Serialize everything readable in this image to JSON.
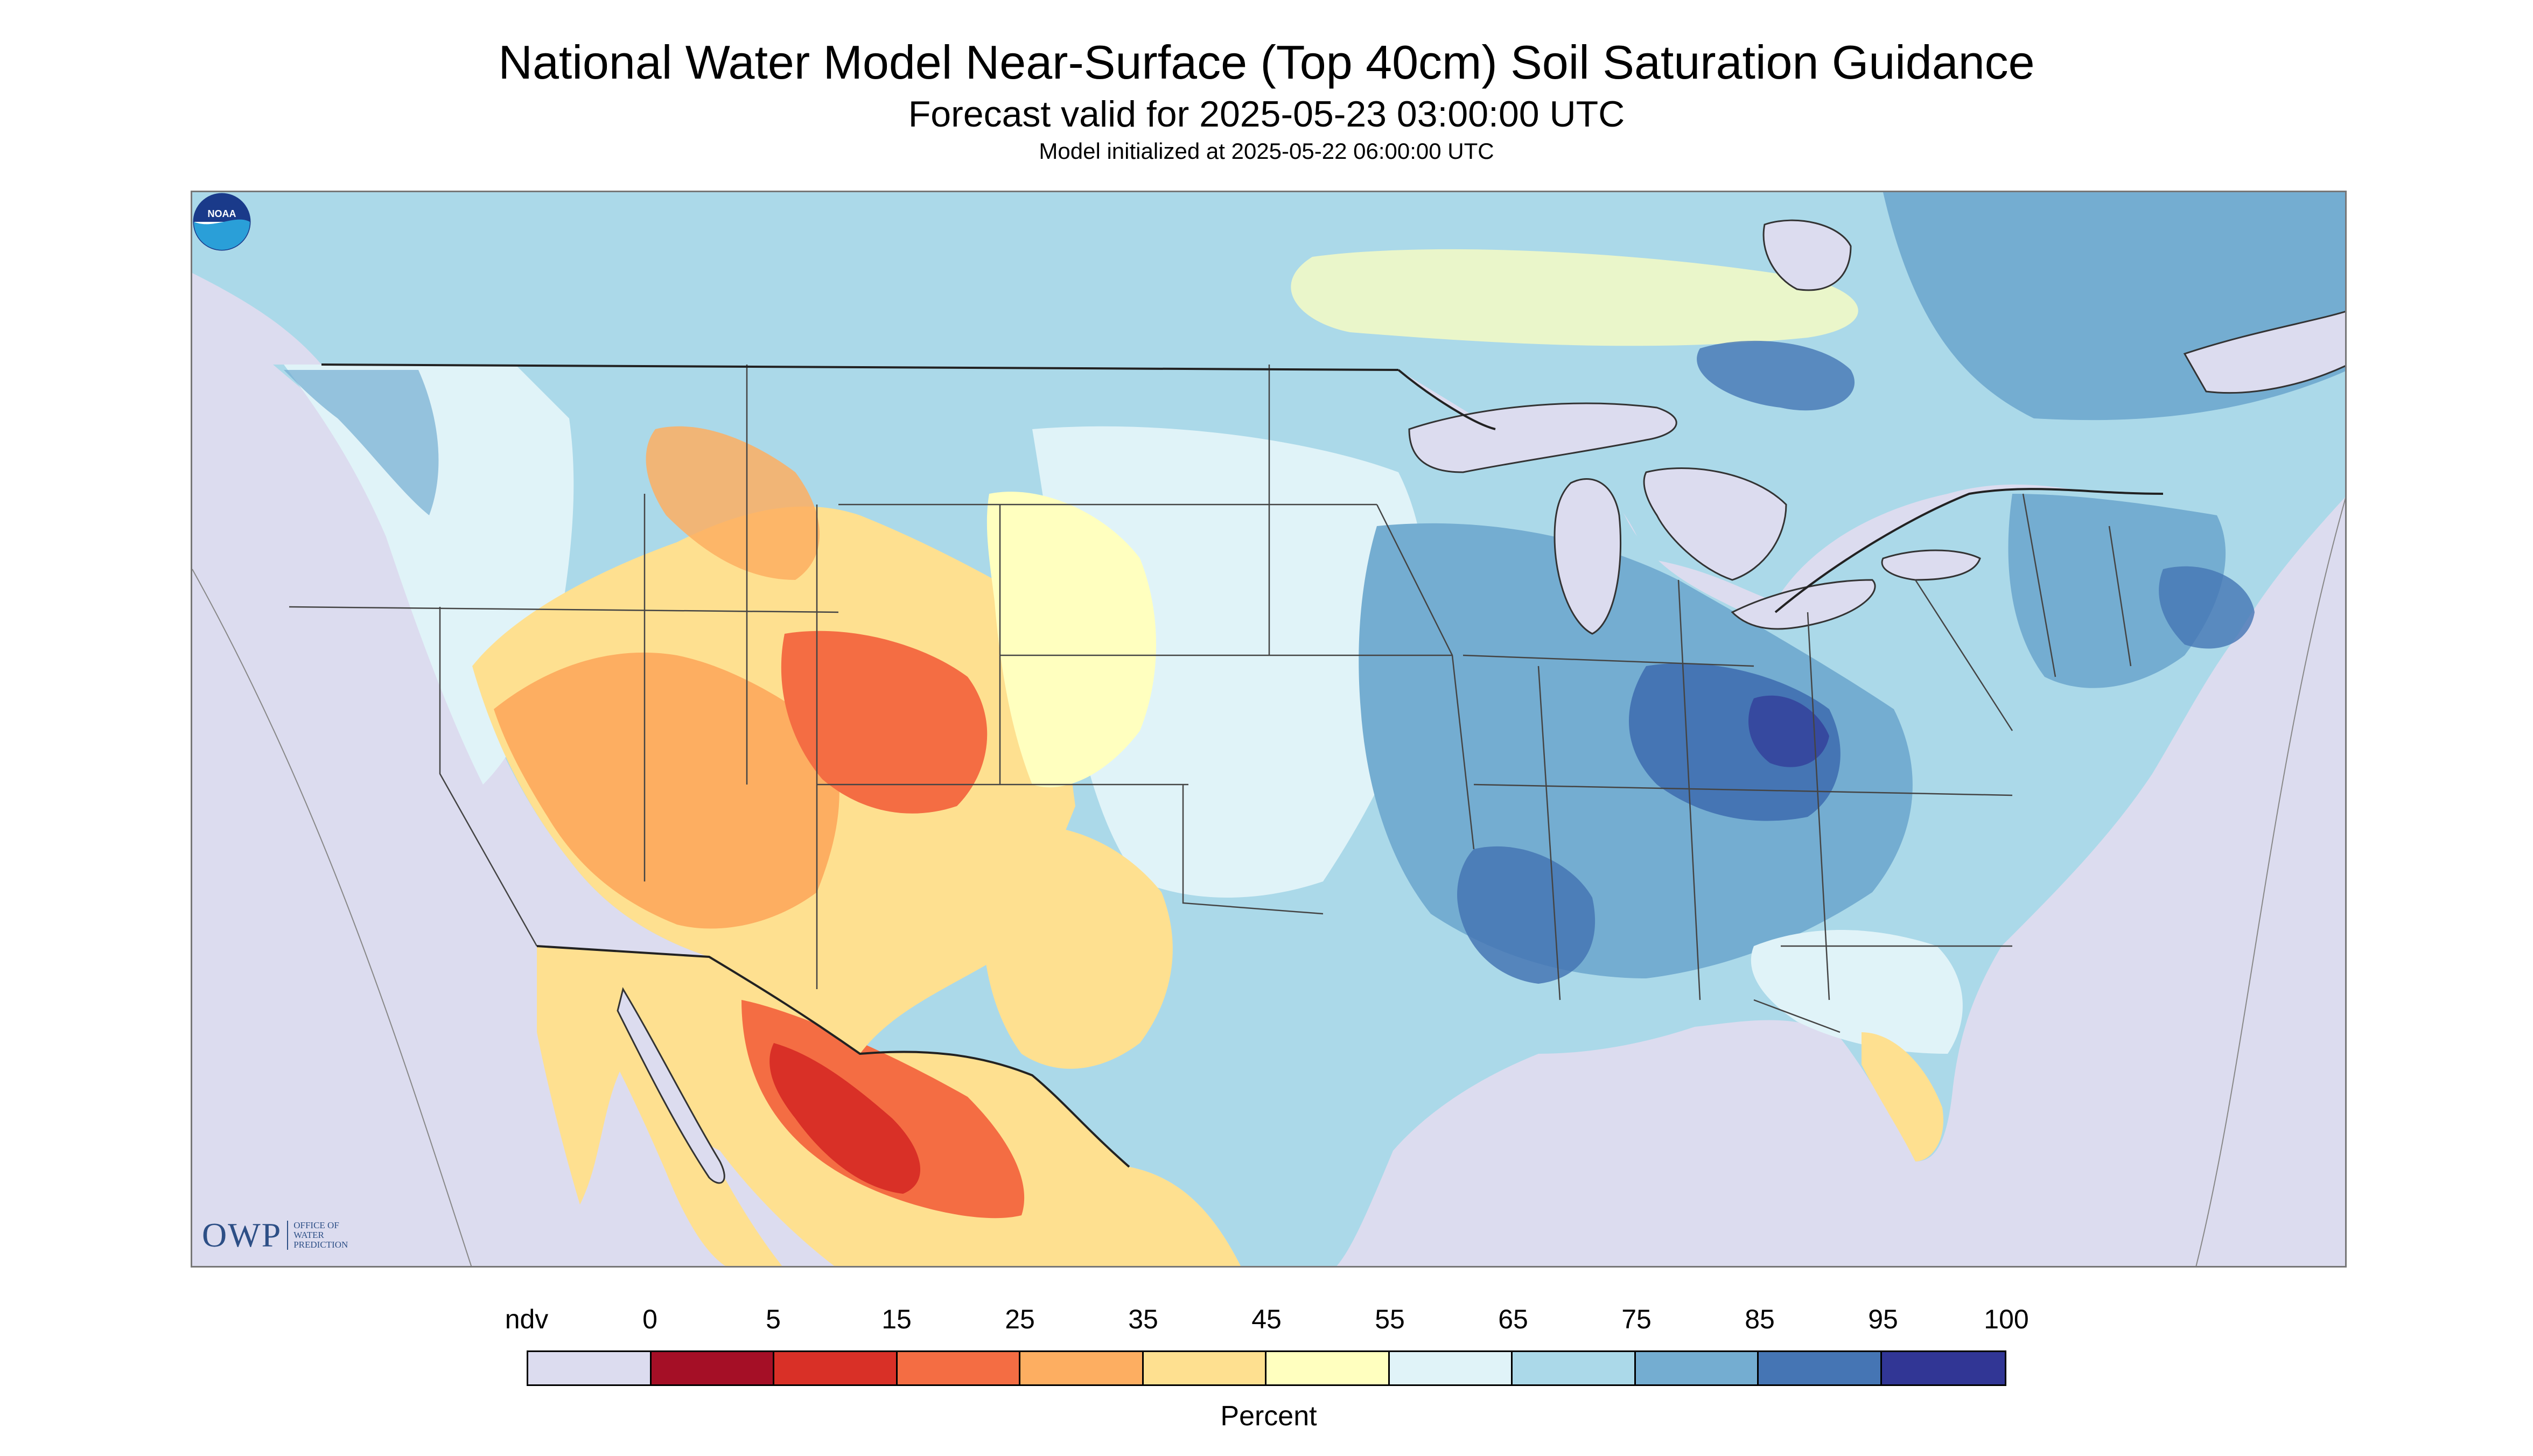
{
  "header": {
    "title": "National Water Model Near-Surface (Top 40cm) Soil Saturation Guidance",
    "subtitle": "Forecast valid for 2025-05-23 03:00:00 UTC",
    "init_line": "Model initialized at 2025-05-22 06:00:00 UTC"
  },
  "logos": {
    "owp_mark": "OWP",
    "owp_text_lines": [
      "OFFICE OF",
      "WATER",
      "PREDICTION"
    ],
    "noaa_text": "NOAA"
  },
  "legend": {
    "unit": "Percent",
    "labels": [
      "ndv",
      "0",
      "5",
      "15",
      "25",
      "35",
      "45",
      "55",
      "65",
      "75",
      "85",
      "95",
      "100"
    ],
    "bins": [
      {
        "label": "ndv",
        "color": "#dcdcef"
      },
      {
        "range": [
          0,
          5
        ],
        "color": "#a50f26"
      },
      {
        "range": [
          5,
          15
        ],
        "color": "#d93027"
      },
      {
        "range": [
          15,
          25
        ],
        "color": "#f46d43"
      },
      {
        "range": [
          25,
          35
        ],
        "color": "#fdae61"
      },
      {
        "range": [
          35,
          45
        ],
        "color": "#fee090"
      },
      {
        "range": [
          45,
          55
        ],
        "color": "#ffffbf"
      },
      {
        "range": [
          55,
          65
        ],
        "color": "#e0f3f8"
      },
      {
        "range": [
          65,
          75
        ],
        "color": "#abd9e9"
      },
      {
        "range": [
          75,
          85
        ],
        "color": "#74add1"
      },
      {
        "range": [
          85,
          95
        ],
        "color": "#4575b4"
      },
      {
        "range": [
          95,
          100
        ],
        "color": "#313695"
      }
    ]
  },
  "map": {
    "no_data_color": "#dcdcef",
    "water_color": "#dcdcef",
    "boundary_color": "#333333"
  }
}
